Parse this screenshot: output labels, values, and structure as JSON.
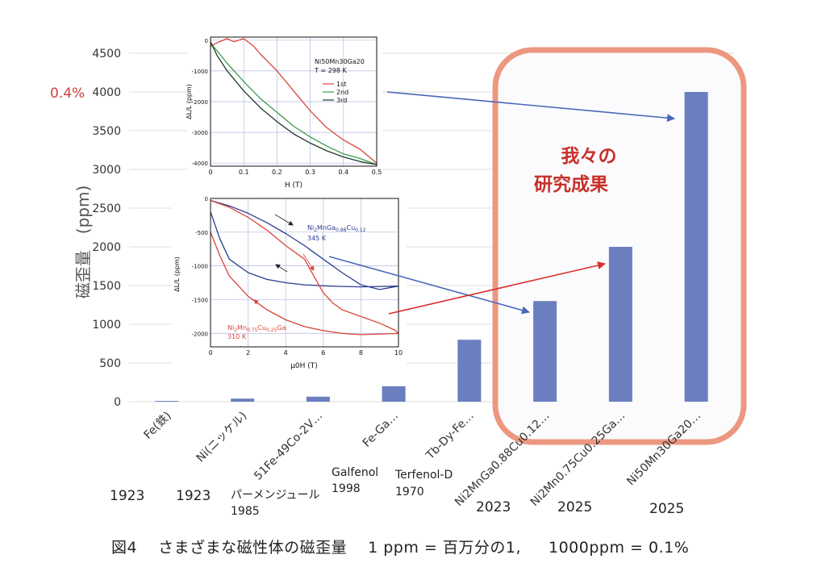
{
  "chart_data": {
    "type": "bar",
    "ylabel": "磁歪量　(ppm)",
    "ylim": [
      0,
      4500
    ],
    "yticks": [
      0,
      500,
      1000,
      1500,
      2000,
      2500,
      3000,
      3500,
      4000,
      4500
    ],
    "grid": true,
    "bar_color": "#6b7fc0",
    "categories": [
      "Fe(鉄)",
      "Ni(ニッケル)",
      "51Fe-49Co-2V…",
      "Fe-Ga…",
      "Tb-Dy-Fe…",
      "Ni2MnGa0.88Cu0.12…",
      "Ni2Mn0.75Cu0.25Ga…",
      "Ni50Mn30Ga20…"
    ],
    "values": [
      10,
      40,
      65,
      200,
      800,
      1300,
      2000,
      4000
    ],
    "category_notes": [
      {
        "name": "パーメンジュール",
        "year": "1985"
      },
      {
        "name": "Galfenol",
        "year": "1998"
      },
      {
        "name": "Terfenol-D",
        "year": "1970"
      }
    ],
    "years": [
      "1923",
      "1923",
      "2023",
      "2025",
      "2025"
    ],
    "annotation_percent": "0.4%",
    "highlight_label_lines": [
      "我々の",
      "研究成果"
    ],
    "highlight_color": "#ec9880",
    "inset_top": {
      "type": "line",
      "title_lines": [
        "Ni50Mn30Ga20",
        "T = 298 K"
      ],
      "xlabel": "H (T)",
      "ylabel": "ΔL/L (ppm)",
      "xlim": [
        0,
        0.5
      ],
      "ylim": [
        -4100,
        100
      ],
      "xticks": [
        "0",
        "0.1",
        "0.2",
        "0.3",
        "0.4",
        "0.5"
      ],
      "yticks": [
        "0",
        "-1000",
        "-2000",
        "-3000",
        "-4000"
      ],
      "series": [
        {
          "name": "1st",
          "color": "#d9453b",
          "x": [
            0,
            0.02,
            0.05,
            0.07,
            0.1,
            0.13,
            0.15,
            0.2,
            0.25,
            0.3,
            0.35,
            0.4,
            0.45,
            0.5
          ],
          "y": [
            -200,
            -80,
            50,
            -50,
            50,
            -200,
            -450,
            -1000,
            -1650,
            -2300,
            -2850,
            -3250,
            -3550,
            -4000
          ]
        },
        {
          "name": "2nd",
          "color": "#3a9a4a",
          "x": [
            0,
            0.02,
            0.05,
            0.1,
            0.15,
            0.2,
            0.25,
            0.3,
            0.35,
            0.4,
            0.45,
            0.5
          ],
          "y": [
            -100,
            -350,
            -750,
            -1350,
            -1900,
            -2350,
            -2800,
            -3150,
            -3450,
            -3700,
            -3850,
            -4050
          ]
        },
        {
          "name": "3rd",
          "color": "#1e3d2a",
          "x": [
            0,
            0.02,
            0.05,
            0.1,
            0.15,
            0.2,
            0.25,
            0.3,
            0.35,
            0.4,
            0.45,
            0.5
          ],
          "y": [
            -50,
            -500,
            -1000,
            -1650,
            -2200,
            -2650,
            -3050,
            -3350,
            -3600,
            -3800,
            -3950,
            -4050
          ]
        }
      ]
    },
    "inset_bottom": {
      "type": "line",
      "xlabel": "μ0H (T)",
      "ylabel": "ΔL/L (ppm)",
      "xlim": [
        0,
        10
      ],
      "ylim": [
        -2200,
        0
      ],
      "xticks": [
        "0",
        "2",
        "4",
        "6",
        "8",
        "10"
      ],
      "yticks": [
        "0",
        "-500",
        "-1000",
        "-1500",
        "-2000"
      ],
      "series": [
        {
          "name": "Ni2MnGa0.88Cu0.12\n345 K",
          "color": "#2b3d8f",
          "x": [
            0,
            1,
            2,
            3,
            4,
            5,
            6,
            7,
            8,
            9,
            10,
            9,
            8,
            7,
            6,
            5,
            4,
            3,
            2,
            1,
            0.5,
            0
          ],
          "y": [
            -30,
            -110,
            -220,
            -360,
            -520,
            -700,
            -900,
            -1100,
            -1280,
            -1350,
            -1300,
            -1305,
            -1310,
            -1305,
            -1295,
            -1280,
            -1250,
            -1200,
            -1100,
            -900,
            -600,
            -200
          ]
        },
        {
          "name": "Ni2Mn0.75Cu0.25Ga\n310 K",
          "color": "#d9453b",
          "x": [
            0,
            1,
            2,
            3,
            4,
            5,
            5.5,
            6,
            6.5,
            7,
            8,
            9,
            9.8,
            10,
            9,
            8,
            7,
            6,
            5,
            4,
            3,
            2,
            1,
            0.5,
            0
          ],
          "y": [
            -30,
            -130,
            -280,
            -470,
            -700,
            -900,
            -1150,
            -1400,
            -1550,
            -1650,
            -1750,
            -1850,
            -1950,
            -2000,
            -2010,
            -2020,
            -2000,
            -1960,
            -1900,
            -1800,
            -1650,
            -1450,
            -1150,
            -850,
            -500
          ]
        }
      ]
    }
  },
  "caption": {
    "figure": "図4",
    "text": "さまざまな磁性体の磁歪量",
    "eq1": "1 ppm = 百万分の1,",
    "eq2": "1000ppm = 0.1%"
  }
}
